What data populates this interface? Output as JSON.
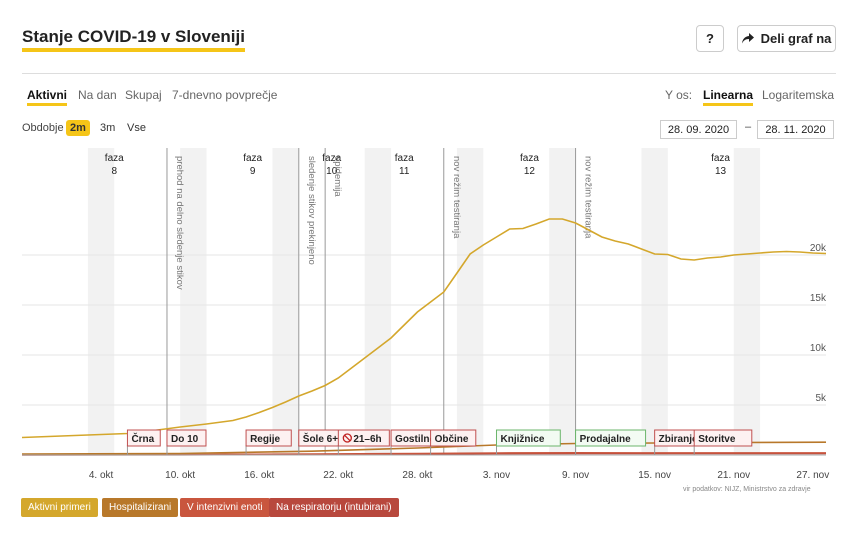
{
  "header": {
    "title": "Stanje COVID-19 v Sloveniji",
    "help_label": "?",
    "share_label": "Deli graf na",
    "share_icon": "share-arrow-icon"
  },
  "tabs": {
    "items": [
      "Aktivni",
      "Na dan",
      "Skupaj",
      "7-dnevno povprečje"
    ],
    "active": "Aktivni"
  },
  "yaxis_toggle": {
    "label": "Y os:",
    "items": [
      "Linearna",
      "Logaritemska"
    ],
    "active": "Linearna"
  },
  "period": {
    "label": "Obdobje",
    "items": [
      "2m",
      "3m",
      "Vse"
    ],
    "active": "2m",
    "from": "28. 09. 2020",
    "to": "28. 11. 2020",
    "separator": "–"
  },
  "source": "vir podatkov: NIJZ, Ministrstvo za zdravje",
  "colors": {
    "accent": "#f5c518",
    "active": "#d4a72c",
    "hospitalized": "#b8782a",
    "icu": "#c9563e",
    "respirator": "#b8483d"
  },
  "chart_data": {
    "type": "line",
    "x_start": "2020-09-28",
    "x_end": "2020-11-28",
    "y_range": [
      0,
      25000
    ],
    "y_ticks": [
      {
        "value": 5000,
        "label": "5k"
      },
      {
        "value": 10000,
        "label": "10k"
      },
      {
        "value": 15000,
        "label": "15k"
      },
      {
        "value": 20000,
        "label": "20k"
      }
    ],
    "x_ticks": [
      {
        "date": "2020-10-04",
        "label": "4. okt"
      },
      {
        "date": "2020-10-10",
        "label": "10. okt"
      },
      {
        "date": "2020-10-16",
        "label": "16. okt"
      },
      {
        "date": "2020-10-22",
        "label": "22. okt"
      },
      {
        "date": "2020-10-28",
        "label": "28. okt"
      },
      {
        "date": "2020-11-03",
        "label": "3. nov"
      },
      {
        "date": "2020-11-09",
        "label": "9. nov"
      },
      {
        "date": "2020-11-15",
        "label": "15. nov"
      },
      {
        "date": "2020-11-21",
        "label": "21. nov"
      },
      {
        "date": "2020-11-27",
        "label": "27. nov"
      }
    ],
    "series": [
      {
        "name": "Aktivni primeri",
        "color": "#d4a72c",
        "points": [
          [
            "2020-09-28",
            1750
          ],
          [
            "2020-09-30",
            1850
          ],
          [
            "2020-10-02",
            1950
          ],
          [
            "2020-10-04",
            2050
          ],
          [
            "2020-10-06",
            2150
          ],
          [
            "2020-10-08",
            2450
          ],
          [
            "2020-10-10",
            2800
          ],
          [
            "2020-10-12",
            3100
          ],
          [
            "2020-10-14",
            3450
          ],
          [
            "2020-10-15",
            3800
          ],
          [
            "2020-10-16",
            4250
          ],
          [
            "2020-10-17",
            4750
          ],
          [
            "2020-10-18",
            5300
          ],
          [
            "2020-10-19",
            5900
          ],
          [
            "2020-10-20",
            6400
          ],
          [
            "2020-10-21",
            6950
          ],
          [
            "2020-10-22",
            7700
          ],
          [
            "2020-10-23",
            8700
          ],
          [
            "2020-10-24",
            9700
          ],
          [
            "2020-10-25",
            10700
          ],
          [
            "2020-10-26",
            11700
          ],
          [
            "2020-10-27",
            13000
          ],
          [
            "2020-10-28",
            14300
          ],
          [
            "2020-10-29",
            15300
          ],
          [
            "2020-10-30",
            16300
          ],
          [
            "2020-10-31",
            18200
          ],
          [
            "2020-11-01",
            20100
          ],
          [
            "2020-11-02",
            21000
          ],
          [
            "2020-11-03",
            21800
          ],
          [
            "2020-11-04",
            22600
          ],
          [
            "2020-11-05",
            22650
          ],
          [
            "2020-11-06",
            23100
          ],
          [
            "2020-11-07",
            23600
          ],
          [
            "2020-11-08",
            23600
          ],
          [
            "2020-11-09",
            23200
          ],
          [
            "2020-11-10",
            22500
          ],
          [
            "2020-11-11",
            21800
          ],
          [
            "2020-11-12",
            21400
          ],
          [
            "2020-11-13",
            21100
          ],
          [
            "2020-11-14",
            20600
          ],
          [
            "2020-11-15",
            20100
          ],
          [
            "2020-11-16",
            20050
          ],
          [
            "2020-11-17",
            19600
          ],
          [
            "2020-11-18",
            19500
          ],
          [
            "2020-11-19",
            19700
          ],
          [
            "2020-11-20",
            19800
          ],
          [
            "2020-11-21",
            20000
          ],
          [
            "2020-11-22",
            20100
          ],
          [
            "2020-11-23",
            20200
          ],
          [
            "2020-11-24",
            20300
          ],
          [
            "2020-11-25",
            20350
          ],
          [
            "2020-11-26",
            20300
          ],
          [
            "2020-11-27",
            20200
          ],
          [
            "2020-11-28",
            20150
          ]
        ]
      },
      {
        "name": "Hospitalizirani",
        "color": "#b8782a",
        "points": [
          [
            "2020-09-28",
            100
          ],
          [
            "2020-10-10",
            150
          ],
          [
            "2020-10-20",
            380
          ],
          [
            "2020-10-28",
            700
          ],
          [
            "2020-11-03",
            1000
          ],
          [
            "2020-11-09",
            1150
          ],
          [
            "2020-11-15",
            1200
          ],
          [
            "2020-11-21",
            1250
          ],
          [
            "2020-11-28",
            1280
          ]
        ]
      },
      {
        "name": "V intenzivni enoti",
        "color": "#c9563e",
        "points": [
          [
            "2020-09-28",
            30
          ],
          [
            "2020-10-10",
            40
          ],
          [
            "2020-10-20",
            90
          ],
          [
            "2020-10-28",
            150
          ],
          [
            "2020-11-03",
            200
          ],
          [
            "2020-11-09",
            220
          ],
          [
            "2020-11-15",
            210
          ],
          [
            "2020-11-21",
            210
          ],
          [
            "2020-11-28",
            215
          ]
        ]
      },
      {
        "name": "Na respiratorju (intubirani)",
        "color": "#b8483d",
        "points": [
          [
            "2020-09-28",
            15
          ],
          [
            "2020-10-10",
            20
          ],
          [
            "2020-10-20",
            50
          ],
          [
            "2020-10-28",
            100
          ],
          [
            "2020-11-03",
            140
          ],
          [
            "2020-11-09",
            160
          ],
          [
            "2020-11-15",
            150
          ],
          [
            "2020-11-21",
            150
          ],
          [
            "2020-11-28",
            155
          ]
        ]
      }
    ],
    "phases": [
      {
        "label": "faza",
        "num": "8",
        "start": "2020-09-28",
        "end": "2020-10-12"
      },
      {
        "label": "faza",
        "num": "9",
        "start": "2020-10-12",
        "end": "2020-10-19"
      },
      {
        "label": "faza",
        "num": "10",
        "start": "2020-10-19",
        "end": "2020-10-24"
      },
      {
        "label": "faza",
        "num": "11",
        "start": "2020-10-24",
        "end": "2020-10-30"
      },
      {
        "label": "faza",
        "num": "12",
        "start": "2020-10-30",
        "end": "2020-11-12"
      },
      {
        "label": "faza",
        "num": "13",
        "start": "2020-11-12",
        "end": "2020-11-28"
      }
    ],
    "vertical_events": [
      {
        "date": "2020-10-09",
        "label": "prehod na delno sledenje stikov"
      },
      {
        "date": "2020-10-19",
        "label": "sledenje stikov prekinjeno"
      },
      {
        "date": "2020-10-21",
        "label": "epidemija"
      },
      {
        "date": "2020-10-30",
        "label": "nov režim testiranja"
      },
      {
        "date": "2020-11-09",
        "label": "nov režim testiranja"
      }
    ],
    "markers": [
      {
        "date": "2020-10-06",
        "label": "Črna",
        "type": "restriction"
      },
      {
        "date": "2020-10-09",
        "label": "Do 10",
        "type": "restriction"
      },
      {
        "date": "2020-10-15",
        "label": "Regije",
        "type": "restriction"
      },
      {
        "date": "2020-10-19",
        "label": "Šole 6+",
        "type": "restriction"
      },
      {
        "date": "2020-10-22",
        "label": "21–6h",
        "type": "curfew"
      },
      {
        "date": "2020-10-26",
        "label": "Gostilne",
        "type": "restriction"
      },
      {
        "date": "2020-10-29",
        "label": "Občine",
        "type": "restriction"
      },
      {
        "date": "2020-11-03",
        "label": "Knjižnice",
        "type": "relaxation"
      },
      {
        "date": "2020-11-09",
        "label": "Prodajalne",
        "type": "relaxation"
      },
      {
        "date": "2020-11-15",
        "label": "Zbiranje",
        "type": "restriction"
      },
      {
        "date": "2020-11-18",
        "label": "Storitve",
        "type": "restriction"
      }
    ]
  }
}
